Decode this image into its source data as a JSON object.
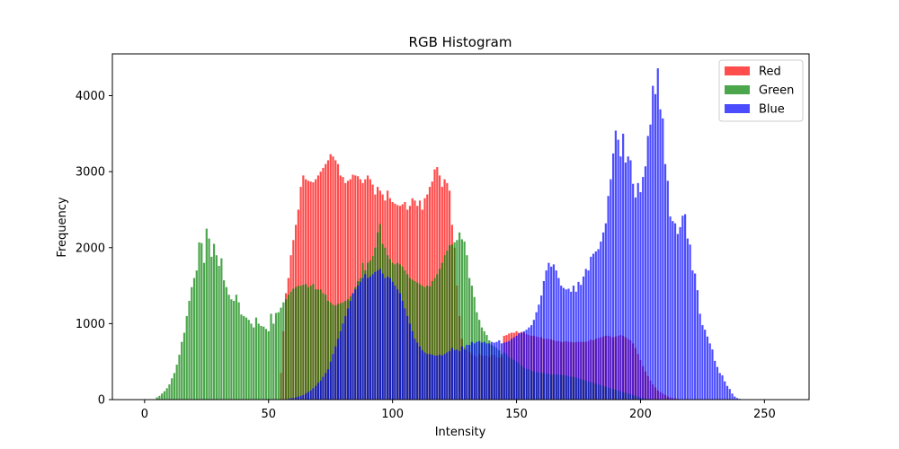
{
  "chart_data": {
    "type": "bar",
    "title": "RGB Histogram",
    "xlabel": "Intensity",
    "ylabel": "Frequency",
    "xlim": [
      -13,
      268
    ],
    "ylim": [
      0,
      4550
    ],
    "xticks": [
      0,
      50,
      100,
      150,
      200,
      250
    ],
    "yticks": [
      0,
      1000,
      2000,
      3000,
      4000
    ],
    "grid": false,
    "legend_position": "top-right",
    "bar_opacity": 0.7,
    "series": [
      {
        "name": "Red",
        "color": "#ff0000",
        "values": [
          0,
          0,
          0,
          0,
          0,
          0,
          0,
          0,
          0,
          0,
          0,
          0,
          0,
          0,
          0,
          0,
          0,
          0,
          0,
          0,
          0,
          0,
          0,
          0,
          0,
          0,
          0,
          0,
          0,
          0,
          0,
          0,
          0,
          0,
          0,
          0,
          0,
          0,
          0,
          0,
          0,
          0,
          0,
          0,
          0,
          0,
          0,
          0,
          0,
          0,
          0,
          0,
          0,
          0,
          0,
          350,
          900,
          1400,
          1600,
          1900,
          2100,
          2300,
          2500,
          2800,
          2950,
          2900,
          2880,
          2870,
          2860,
          2900,
          2950,
          3000,
          3050,
          3100,
          3150,
          3230,
          3200,
          3150,
          3100,
          2950,
          2930,
          2850,
          2880,
          2900,
          2960,
          2950,
          2940,
          2900,
          2850,
          2900,
          2950,
          2900,
          2830,
          2700,
          2800,
          2750,
          2700,
          2620,
          2750,
          2650,
          2600,
          2580,
          2560,
          2550,
          2570,
          2600,
          2500,
          2550,
          2650,
          2620,
          2550,
          2620,
          2500,
          2650,
          2700,
          2800,
          2870,
          3030,
          3060,
          2950,
          2800,
          2900,
          2850,
          2750,
          2300,
          2000,
          1500,
          1100,
          800,
          690,
          650,
          630,
          600,
          580,
          560,
          600,
          580,
          580,
          580,
          560,
          590,
          590,
          560,
          550,
          560,
          840,
          850,
          870,
          880,
          880,
          900,
          880,
          890,
          880,
          860,
          850,
          840,
          840,
          830,
          820,
          820,
          800,
          800,
          800,
          790,
          780,
          770,
          770,
          760,
          760,
          770,
          760,
          760,
          750,
          760,
          760,
          760,
          760,
          760,
          770,
          790,
          780,
          800,
          810,
          820,
          830,
          840,
          840,
          830,
          820,
          830,
          840,
          850,
          840,
          820,
          800,
          780,
          740,
          680,
          600,
          520,
          440,
          370,
          310,
          250,
          200,
          160,
          120,
          100,
          80,
          60,
          40,
          30,
          20,
          15,
          10,
          5,
          0,
          0,
          0,
          0,
          0,
          0,
          0,
          0,
          0,
          0,
          0,
          0,
          0,
          0,
          0,
          0,
          0,
          0,
          0,
          0,
          0,
          0,
          0,
          0,
          0,
          0,
          0,
          0,
          0,
          0,
          0,
          0,
          0,
          0,
          0,
          0,
          0,
          0,
          0,
          0,
          0,
          0,
          0,
          0,
          0,
          0,
          0,
          0
        ]
      },
      {
        "name": "Green",
        "color": "#008000",
        "values": [
          0,
          0,
          0,
          0,
          0,
          30,
          50,
          80,
          110,
          150,
          200,
          280,
          350,
          460,
          590,
          760,
          880,
          1100,
          1300,
          1480,
          1600,
          1700,
          2070,
          2060,
          1800,
          2250,
          2120,
          1880,
          2050,
          1900,
          1760,
          1860,
          1570,
          1480,
          1380,
          1320,
          1300,
          1380,
          1280,
          1120,
          1100,
          1080,
          1050,
          1000,
          950,
          1080,
          1000,
          970,
          960,
          930,
          900,
          1130,
          1000,
          1140,
          1150,
          1210,
          1280,
          1320,
          1380,
          1420,
          1460,
          1480,
          1500,
          1500,
          1510,
          1520,
          1480,
          1500,
          1520,
          1450,
          1450,
          1450,
          1400,
          1380,
          1300,
          1280,
          1250,
          1240,
          1260,
          1270,
          1280,
          1300,
          1320,
          1360,
          1400,
          1480,
          1560,
          1600,
          1800,
          1700,
          1800,
          1830,
          1890,
          2000,
          2200,
          2310,
          2050,
          2000,
          1900,
          1850,
          1800,
          1780,
          1800,
          1780,
          1750,
          1700,
          1650,
          1600,
          1580,
          1560,
          1540,
          1520,
          1500,
          1480,
          1500,
          1490,
          1560,
          1600,
          1650,
          1720,
          1800,
          1900,
          1960,
          2030,
          2040,
          2070,
          2100,
          2200,
          2110,
          2080,
          1900,
          1600,
          1500,
          1350,
          1150,
          1050,
          950,
          900,
          850,
          780,
          720,
          700,
          680,
          650,
          600,
          620,
          600,
          560,
          540,
          520,
          500,
          480,
          450,
          420,
          400,
          400,
          380,
          370,
          360,
          360,
          350,
          350,
          340,
          340,
          330,
          330,
          330,
          330,
          330,
          320,
          320,
          310,
          300,
          300,
          290,
          280,
          270,
          260,
          250,
          240,
          230,
          220,
          210,
          200,
          190,
          180,
          170,
          160,
          150,
          140,
          130,
          120,
          110,
          100,
          90,
          80,
          70,
          60,
          50,
          40,
          30,
          20,
          10,
          10,
          10,
          0,
          0,
          0,
          0,
          0,
          0,
          0,
          0,
          0,
          0,
          0,
          0,
          0,
          0,
          0,
          0,
          0,
          0,
          0,
          0,
          0,
          0,
          0,
          0,
          0,
          0,
          0,
          0,
          0,
          0,
          0,
          0,
          0,
          0,
          0,
          0,
          0,
          0,
          0,
          0,
          0,
          0,
          0,
          0,
          0,
          0,
          0,
          0,
          0,
          0,
          0,
          0,
          0,
          0,
          0,
          0,
          0,
          0,
          0,
          0,
          0,
          0,
          0
        ]
      },
      {
        "name": "Blue",
        "color": "#0000ff",
        "values": [
          0,
          0,
          0,
          0,
          0,
          0,
          0,
          0,
          0,
          0,
          0,
          0,
          0,
          0,
          0,
          0,
          0,
          0,
          0,
          0,
          0,
          0,
          0,
          0,
          0,
          0,
          0,
          0,
          0,
          0,
          0,
          0,
          0,
          0,
          0,
          0,
          0,
          0,
          0,
          0,
          0,
          0,
          0,
          0,
          0,
          0,
          0,
          0,
          0,
          0,
          0,
          0,
          0,
          0,
          0,
          0,
          0,
          0,
          10,
          20,
          20,
          30,
          40,
          50,
          60,
          80,
          100,
          120,
          150,
          180,
          220,
          250,
          300,
          350,
          400,
          500,
          600,
          700,
          800,
          900,
          1000,
          1100,
          1200,
          1300,
          1400,
          1450,
          1500,
          1550,
          1600,
          1650,
          1600,
          1620,
          1650,
          1680,
          1700,
          1720,
          1660,
          1600,
          1620,
          1600,
          1550,
          1500,
          1450,
          1400,
          1300,
          1200,
          1100,
          1000,
          900,
          800,
          750,
          700,
          650,
          620,
          600,
          600,
          590,
          580,
          580,
          590,
          580,
          600,
          620,
          640,
          680,
          650,
          660,
          640,
          700,
          660,
          720,
          720,
          760,
          740,
          760,
          770,
          750,
          760,
          740,
          740,
          760,
          750,
          760,
          780,
          740,
          750,
          760,
          770,
          800,
          820,
          840,
          870,
          880,
          900,
          920,
          950,
          980,
          1050,
          1150,
          1250,
          1370,
          1560,
          1700,
          1800,
          1750,
          1780,
          1700,
          1600,
          1500,
          1470,
          1450,
          1460,
          1420,
          1500,
          1420,
          1550,
          1510,
          1620,
          1720,
          1700,
          1880,
          1920,
          1950,
          1980,
          2080,
          2200,
          2320,
          2680,
          2900,
          3240,
          3540,
          3420,
          3200,
          3500,
          3120,
          3200,
          3150,
          2840,
          2660,
          2850,
          2730,
          2930,
          3070,
          3470,
          3620,
          4130,
          4020,
          4360,
          3820,
          3700,
          3100,
          2880,
          2410,
          2350,
          2320,
          2180,
          2270,
          2420,
          2440,
          2120,
          2040,
          1700,
          1660,
          1440,
          1130,
          980,
          920,
          830,
          740,
          660,
          510,
          430,
          350,
          320,
          240,
          180,
          140,
          80,
          40,
          20,
          10,
          5
        ]
      }
    ]
  }
}
